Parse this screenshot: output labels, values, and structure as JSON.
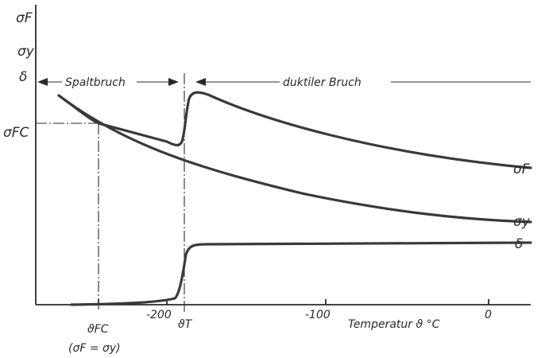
{
  "axis_labels": {
    "sigma_f": "σF",
    "sigma_y": "σy",
    "delta": "δ",
    "sigma_fc": "σFC"
  },
  "x_ticks": [
    "-200",
    "-100",
    "0"
  ],
  "x_axis_title": "Temperatur ϑ °C",
  "markers": {
    "theta_fc": "ϑFC",
    "theta_fc_condition": "(σF = σy)",
    "theta_t": "ϑT"
  },
  "regions": {
    "cleavage": "Spaltbruch",
    "ductile": "duktiler Bruch"
  },
  "curve_labels": {
    "sigma_f": "σF",
    "sigma_y": "σy",
    "delta": "δ"
  },
  "chart_data": {
    "type": "line",
    "xlabel": "Temperatur ϑ °C",
    "x_ticks": [
      -200,
      -100,
      0
    ],
    "series": [
      {
        "name": "σF"
      },
      {
        "name": "σy"
      },
      {
        "name": "δ"
      }
    ]
  }
}
